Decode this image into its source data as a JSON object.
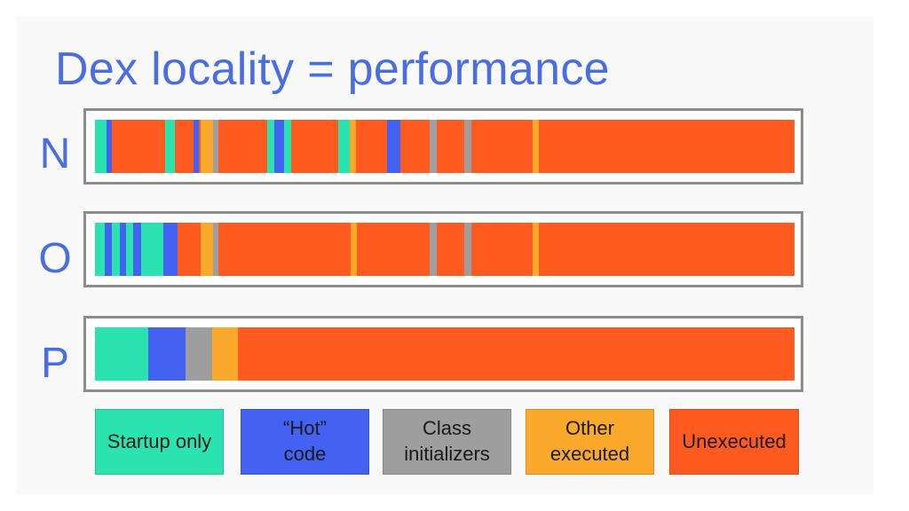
{
  "title": "Dex locality = performance",
  "colors": {
    "startup": "#2be3b0",
    "hot": "#4462f2",
    "class": "#9e9e9e",
    "other": "#fba92a",
    "unexecuted": "#ff5a1f"
  },
  "legend": [
    {
      "key": "startup",
      "label": "Startup only"
    },
    {
      "key": "hot",
      "label": "“Hot”\ncode"
    },
    {
      "key": "class",
      "label": "Class\ninitializers"
    },
    {
      "key": "other",
      "label": "Other\nexecuted"
    },
    {
      "key": "unexecuted",
      "label": "Unexecuted"
    }
  ],
  "rows": [
    {
      "label": "N",
      "segments": [
        {
          "type": "startup",
          "start": 0,
          "end": 0.016
        },
        {
          "type": "hot",
          "start": 0.016,
          "end": 0.024
        },
        {
          "type": "startup",
          "start": 0.1,
          "end": 0.114
        },
        {
          "type": "hot",
          "start": 0.141,
          "end": 0.149
        },
        {
          "type": "other",
          "start": 0.151,
          "end": 0.169
        },
        {
          "type": "class",
          "start": 0.169,
          "end": 0.177
        },
        {
          "type": "startup",
          "start": 0.246,
          "end": 0.256
        },
        {
          "type": "hot",
          "start": 0.256,
          "end": 0.27
        },
        {
          "type": "startup",
          "start": 0.27,
          "end": 0.28
        },
        {
          "type": "startup",
          "start": 0.348,
          "end": 0.364
        },
        {
          "type": "other",
          "start": 0.364,
          "end": 0.373
        },
        {
          "type": "hot",
          "start": 0.418,
          "end": 0.437
        },
        {
          "type": "class",
          "start": 0.478,
          "end": 0.488
        },
        {
          "type": "class",
          "start": 0.528,
          "end": 0.538
        },
        {
          "type": "other",
          "start": 0.625,
          "end": 0.634
        }
      ]
    },
    {
      "label": "O",
      "segments": [
        {
          "type": "startup",
          "start": 0,
          "end": 0.014
        },
        {
          "type": "hot",
          "start": 0.014,
          "end": 0.024
        },
        {
          "type": "startup",
          "start": 0.024,
          "end": 0.036
        },
        {
          "type": "hot",
          "start": 0.036,
          "end": 0.044
        },
        {
          "type": "startup",
          "start": 0.044,
          "end": 0.054
        },
        {
          "type": "hot",
          "start": 0.054,
          "end": 0.066
        },
        {
          "type": "startup",
          "start": 0.066,
          "end": 0.098
        },
        {
          "type": "hot",
          "start": 0.098,
          "end": 0.118
        },
        {
          "type": "other",
          "start": 0.151,
          "end": 0.169
        },
        {
          "type": "class",
          "start": 0.169,
          "end": 0.177
        },
        {
          "type": "other",
          "start": 0.365,
          "end": 0.375
        },
        {
          "type": "class",
          "start": 0.478,
          "end": 0.488
        },
        {
          "type": "class",
          "start": 0.528,
          "end": 0.538
        },
        {
          "type": "other",
          "start": 0.625,
          "end": 0.634
        }
      ]
    },
    {
      "label": "P",
      "segments": [
        {
          "type": "startup",
          "start": 0,
          "end": 0.076
        },
        {
          "type": "hot",
          "start": 0.076,
          "end": 0.13
        },
        {
          "type": "class",
          "start": 0.13,
          "end": 0.167
        },
        {
          "type": "other",
          "start": 0.167,
          "end": 0.204
        }
      ]
    }
  ]
}
